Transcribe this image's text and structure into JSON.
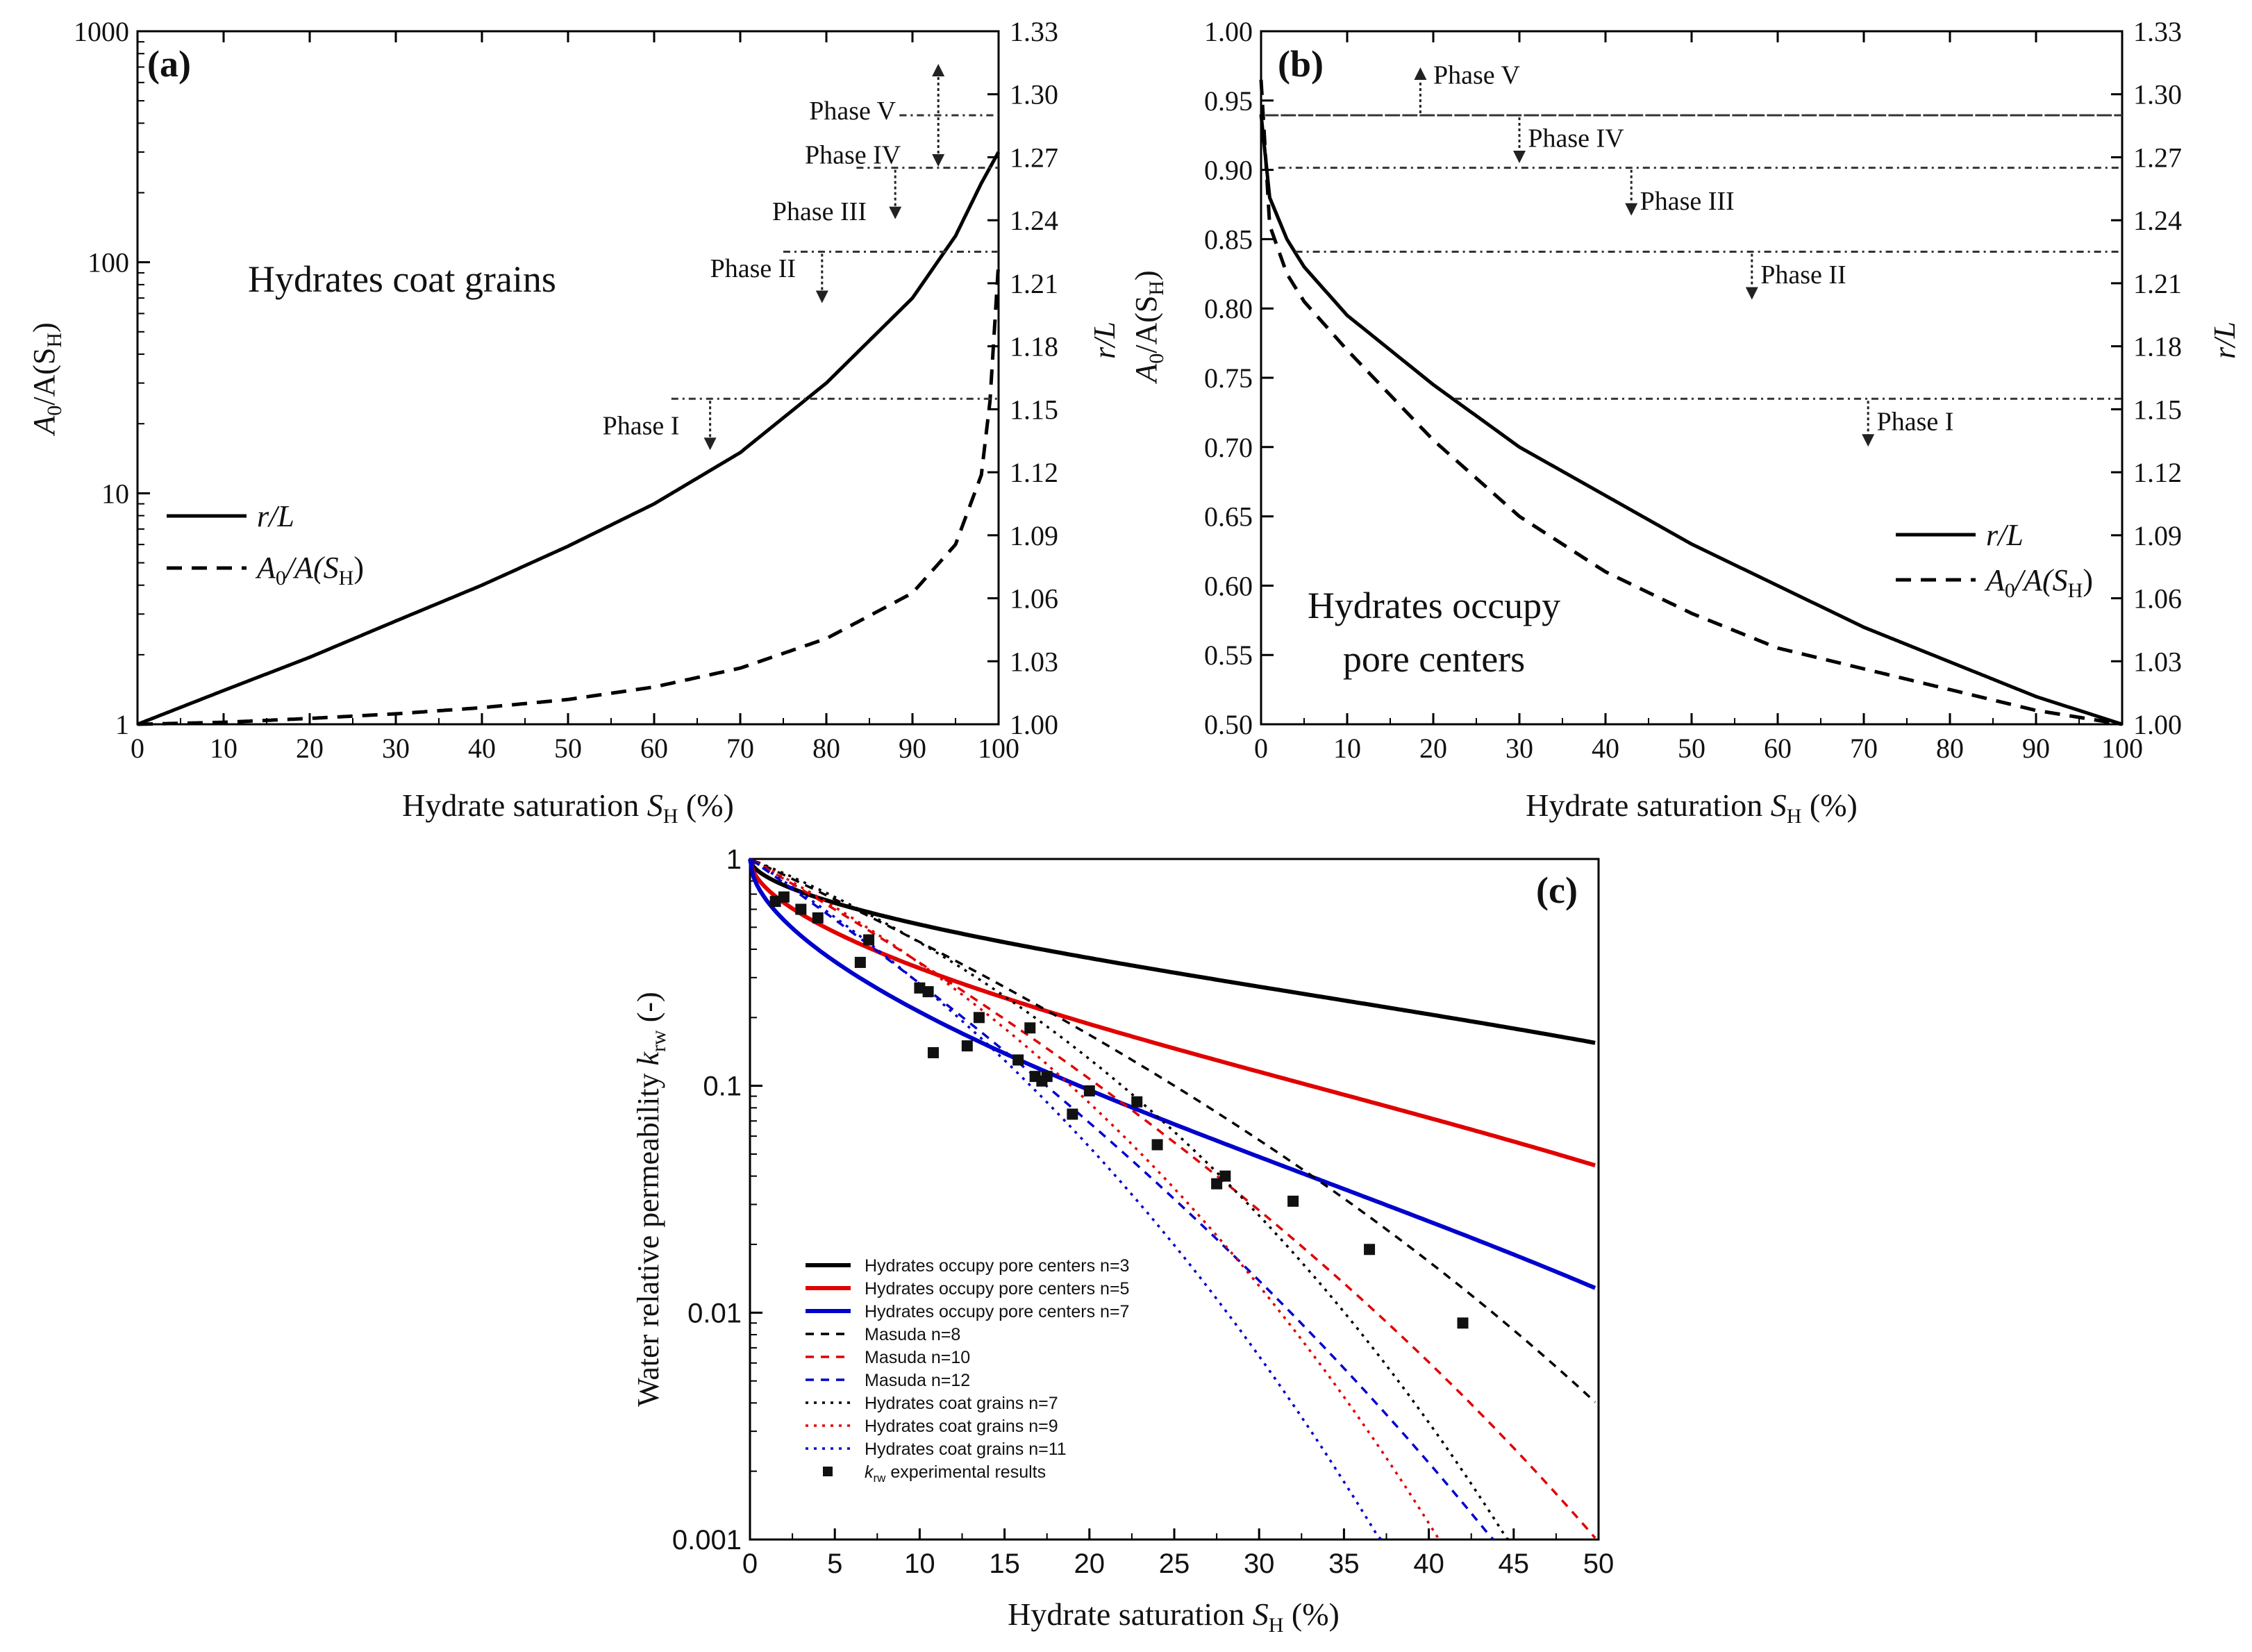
{
  "chart_data": [
    {
      "panel": "(a)",
      "type": "line",
      "xlabel": "Hydrate saturation S_H (%)",
      "ylabel_left": "A0/A(SH)",
      "ylabel_right": "r/L",
      "xlim": [
        0,
        100
      ],
      "ylim_left": [
        1,
        1000
      ],
      "ylim_right": [
        1.0,
        1.33
      ],
      "yscale_left": "log",
      "xticks": [
        "0",
        "10",
        "20",
        "30",
        "40",
        "50",
        "60",
        "70",
        "80",
        "90",
        "100"
      ],
      "yticks_left": [
        "1",
        "10",
        "100",
        "1000"
      ],
      "yticks_right": [
        "1.00",
        "1.03",
        "1.06",
        "1.09",
        "1.12",
        "1.15",
        "1.18",
        "1.21",
        "1.24",
        "1.27",
        "1.30",
        "1.33"
      ],
      "annotation": "Hydrates coat grains",
      "legend": [
        "r/L",
        "A0/A(SH)"
      ],
      "legend_placement": "left",
      "series": [
        {
          "name": "r/L",
          "axis": "left",
          "style": "solid",
          "x": [
            0,
            10,
            20,
            30,
            40,
            50,
            60,
            70,
            80,
            90,
            95,
            98,
            100
          ],
          "y": [
            1.0,
            1.4,
            1.95,
            2.8,
            4.0,
            5.9,
            9.0,
            15,
            30,
            70,
            130,
            220,
            300
          ]
        },
        {
          "name": "A0/A(SH)",
          "axis": "left",
          "style": "dashed",
          "x": [
            0,
            10,
            20,
            30,
            40,
            50,
            60,
            70,
            80,
            90,
            95,
            98,
            99,
            100
          ],
          "y": [
            1.0,
            1.02,
            1.06,
            1.11,
            1.18,
            1.28,
            1.45,
            1.75,
            2.35,
            3.7,
            6.0,
            12,
            25,
            100
          ]
        }
      ],
      "phases": [
        {
          "label": "Phase I",
          "r_over_L": 1.155,
          "arrow": "down"
        },
        {
          "label": "Phase II",
          "r_over_L": 1.225,
          "arrow": "down"
        },
        {
          "label": "Phase III",
          "r_over_L": 1.265,
          "arrow": "down"
        },
        {
          "label": "Phase IV",
          "r_over_L": 1.29,
          "arrow": "down"
        },
        {
          "label": "Phase V",
          "r_over_L": 1.29,
          "arrow": "up"
        }
      ]
    },
    {
      "panel": "(b)",
      "type": "line",
      "xlabel": "Hydrate saturation S_H (%)",
      "ylabel_left": "A0/A(SH)",
      "ylabel_right": "r/L",
      "xlim": [
        0,
        100
      ],
      "ylim_left": [
        0.5,
        1.0
      ],
      "ylim_right": [
        1.0,
        1.33
      ],
      "xticks": [
        "0",
        "10",
        "20",
        "30",
        "40",
        "50",
        "60",
        "70",
        "80",
        "90",
        "100"
      ],
      "yticks_left": [
        "0.50",
        "0.55",
        "0.60",
        "0.65",
        "0.70",
        "0.75",
        "0.80",
        "0.85",
        "0.90",
        "0.95",
        "1.00"
      ],
      "yticks_right": [
        "1.00",
        "1.03",
        "1.06",
        "1.09",
        "1.12",
        "1.15",
        "1.18",
        "1.21",
        "1.24",
        "1.27",
        "1.30",
        "1.33"
      ],
      "annotation": [
        "Hydrates occupy",
        "pore centers"
      ],
      "legend": [
        "r/L",
        "A0/A(SH)"
      ],
      "legend_placement": "bottom-right",
      "series": [
        {
          "name": "r/L",
          "axis": "left",
          "style": "solid",
          "x": [
            0,
            1,
            3,
            5,
            10,
            20,
            30,
            40,
            50,
            60,
            70,
            80,
            90,
            100
          ],
          "y": [
            0.94,
            0.88,
            0.85,
            0.83,
            0.795,
            0.745,
            0.7,
            0.665,
            0.63,
            0.6,
            0.57,
            0.545,
            0.52,
            0.5
          ]
        },
        {
          "name": "A0/A(SH)",
          "axis": "left",
          "style": "dashed",
          "x": [
            0,
            1,
            3,
            5,
            10,
            20,
            30,
            40,
            50,
            60,
            70,
            80,
            90,
            100
          ],
          "y": [
            0.965,
            0.86,
            0.825,
            0.805,
            0.77,
            0.705,
            0.65,
            0.61,
            0.58,
            0.555,
            0.54,
            0.525,
            0.51,
            0.5
          ]
        }
      ],
      "phases": [
        {
          "label": "Phase I",
          "r_over_L": 1.155,
          "arrow": "down"
        },
        {
          "label": "Phase II",
          "r_over_L": 1.225,
          "arrow": "down"
        },
        {
          "label": "Phase III",
          "r_over_L": 1.265,
          "arrow": "down"
        },
        {
          "label": "Phase IV",
          "r_over_L": 1.29,
          "arrow": "down"
        },
        {
          "label": "Phase V",
          "r_over_L": 1.29,
          "arrow": "up"
        }
      ]
    },
    {
      "panel": "(c)",
      "type": "line",
      "xlabel": "Hydrate saturation S_H (%)",
      "ylabel": "Water relative permeability k_rw (-)",
      "xlim": [
        0,
        50
      ],
      "ylim": [
        0.001,
        1
      ],
      "yscale": "log",
      "xticks": [
        "0",
        "5",
        "10",
        "15",
        "20",
        "25",
        "30",
        "35",
        "40",
        "45",
        "50"
      ],
      "yticks": [
        "0.001",
        "0.01",
        "0.1",
        "1"
      ],
      "legend_placement": "bottom-left",
      "series": [
        {
          "name": "Hydrates occupy pore centers n=3",
          "color": "#000000",
          "style": "solid",
          "model": "pore",
          "n": 3
        },
        {
          "name": "Hydrates occupy pore centers n=5",
          "color": "#e00000",
          "style": "solid",
          "model": "pore",
          "n": 5
        },
        {
          "name": "Hydrates occupy pore centers n=7",
          "color": "#0000cc",
          "style": "solid",
          "model": "pore",
          "n": 7
        },
        {
          "name": "Masuda n=8",
          "color": "#000000",
          "style": "dashed",
          "model": "masuda",
          "n": 8
        },
        {
          "name": "Masuda n=10",
          "color": "#e00000",
          "style": "dashed",
          "model": "masuda",
          "n": 10
        },
        {
          "name": "Masuda n=12",
          "color": "#0000cc",
          "style": "dashed",
          "model": "masuda",
          "n": 12
        },
        {
          "name": "Hydrates coat grains n=7",
          "color": "#000000",
          "style": "dotted",
          "model": "coat",
          "n": 7
        },
        {
          "name": "Hydrates coat grains n=9",
          "color": "#e00000",
          "style": "dotted",
          "model": "coat",
          "n": 9
        },
        {
          "name": "Hydrates coat grains n=11",
          "color": "#0000cc",
          "style": "dotted",
          "model": "coat",
          "n": 11
        }
      ],
      "experimental": {
        "name": "krw experimental results",
        "x": [
          1.5,
          2.0,
          3.0,
          4.0,
          6.5,
          7.0,
          10.0,
          10.5,
          10.8,
          12.8,
          13.5,
          15.8,
          16.5,
          16.8,
          17.2,
          17.5,
          19.0,
          20.0,
          22.8,
          24.0,
          27.5,
          28.0,
          32.0,
          36.5,
          42.0
        ],
        "y": [
          0.65,
          0.68,
          0.6,
          0.55,
          0.35,
          0.44,
          0.27,
          0.26,
          0.14,
          0.15,
          0.2,
          0.13,
          0.18,
          0.11,
          0.105,
          0.11,
          0.075,
          0.095,
          0.085,
          0.055,
          0.037,
          0.04,
          0.031,
          0.019,
          0.009
        ]
      }
    }
  ],
  "labels": {
    "panel_a": "(a)",
    "panel_b": "(b)",
    "panel_c": "(c)",
    "coat_grains": "Hydrates coat grains",
    "occupy_1": "Hydrates occupy",
    "occupy_2": "pore centers",
    "legend_rl": "r/L",
    "legend_a0": "A",
    "legend_a0_sub": "0",
    "legend_a0_rest": "/A(S",
    "legend_a0_subH": "H",
    "legend_a0_end": ")",
    "xlabel_main": "Hydrate saturation ",
    "xlabel_S": "S",
    "xlabel_sub": "H",
    "xlabel_end": " (%)",
    "ylabel_c": "Water relative permeability ",
    "ylabel_c_k": "k",
    "ylabel_c_sub": "rw",
    "ylabel_c_end": " (-)",
    "exp_k": "k",
    "exp_sub": "rw",
    "exp_text": " experimental results"
  },
  "styles": {
    "black": "#000000",
    "red": "#e00000",
    "blue": "#0000cc"
  }
}
